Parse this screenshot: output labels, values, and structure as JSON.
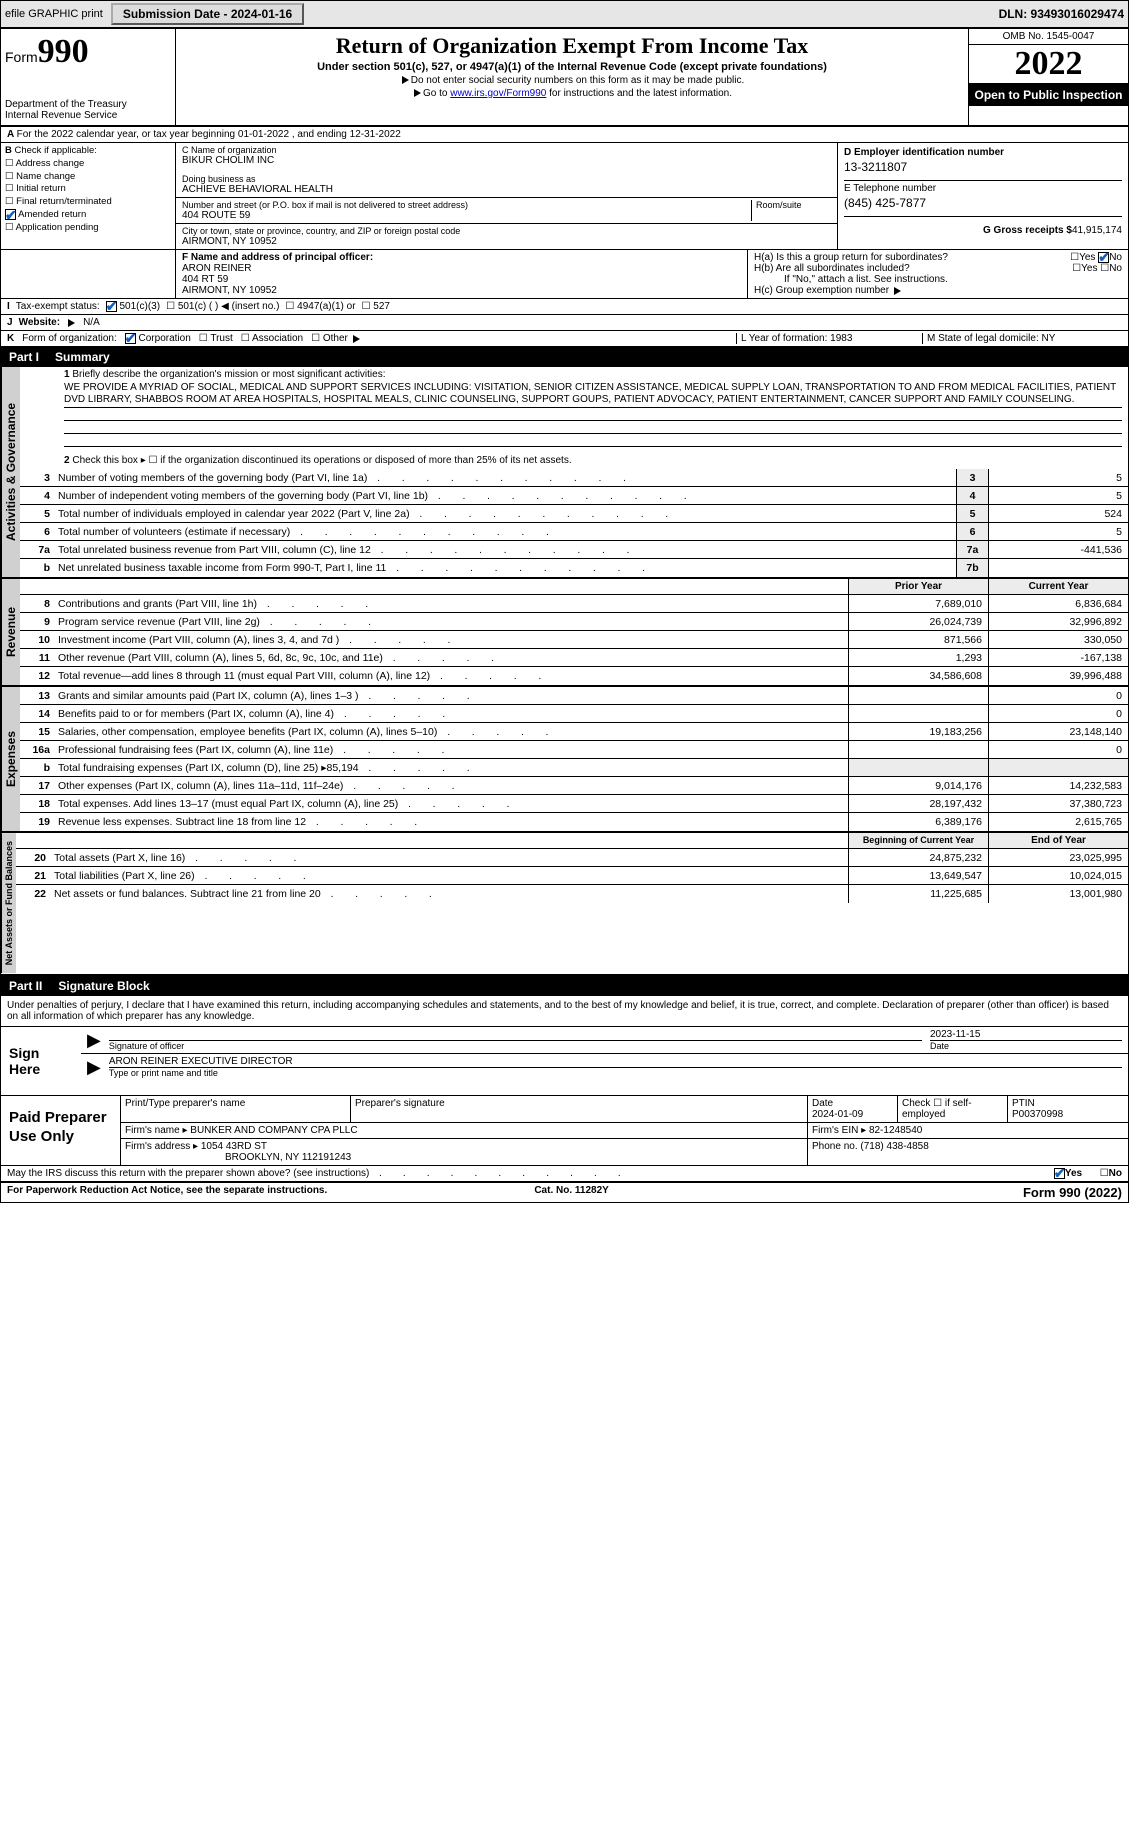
{
  "topbar": {
    "efile": "efile GRAPHIC print",
    "submission_btn": "Submission Date - 2024-01-16",
    "dln": "DLN: 93493016029474"
  },
  "header": {
    "form_word": "Form",
    "form_num": "990",
    "dept": "Department of the Treasury",
    "irs": "Internal Revenue Service",
    "title": "Return of Organization Exempt From Income Tax",
    "subtitle": "Under section 501(c), 527, or 4947(a)(1) of the Internal Revenue Code (except private foundations)",
    "note1": "Do not enter social security numbers on this form as it may be made public.",
    "note2_pre": "Go to ",
    "note2_link": "www.irs.gov/Form990",
    "note2_post": " for instructions and the latest information.",
    "omb": "OMB No. 1545-0047",
    "year": "2022",
    "inspection": "Open to Public Inspection"
  },
  "row_a": "For the 2022 calendar year, or tax year beginning 01-01-2022    , and ending 12-31-2022",
  "col_b": {
    "label": "Check if applicable:",
    "items": [
      "Address change",
      "Name change",
      "Initial return",
      "Final return/terminated",
      "Amended return",
      "Application pending"
    ],
    "amended_checked": true
  },
  "col_c": {
    "name_label": "C Name of organization",
    "name": "BIKUR CHOLIM INC",
    "dba_label": "Doing business as",
    "dba": "ACHIEVE BEHAVIORAL HEALTH",
    "addr_label": "Number and street (or P.O. box if mail is not delivered to street address)",
    "room_label": "Room/suite",
    "addr": "404 ROUTE 59",
    "city_label": "City or town, state or province, country, and ZIP or foreign postal code",
    "city": "AIRMONT, NY  10952"
  },
  "col_d": {
    "d_label": "D Employer identification number",
    "d_val": "13-3211807",
    "e_label": "E Telephone number",
    "e_val": "(845) 425-7877",
    "g_label": "G Gross receipts $",
    "g_val": "41,915,174"
  },
  "fgh": {
    "f_label": "F  Name and address of principal officer:",
    "f_name": "ARON REINER",
    "f_addr1": "404 RT 59",
    "f_addr2": "AIRMONT, NY  10952",
    "ha": "H(a)  Is this a group return for subordinates?",
    "hb": "H(b)  Are all subordinates included?",
    "hb_note": "If \"No,\" attach a list. See instructions.",
    "hc": "H(c)  Group exemption number",
    "yes": "Yes",
    "no": "No"
  },
  "row_i": {
    "label": "Tax-exempt status:",
    "opts": [
      "501(c)(3)",
      "501(c) (   ) ◀ (insert no.)",
      "4947(a)(1) or",
      "527"
    ]
  },
  "row_j": {
    "label": "Website:",
    "val": "N/A"
  },
  "row_k": {
    "label": "Form of organization:",
    "opts": [
      "Corporation",
      "Trust",
      "Association",
      "Other"
    ]
  },
  "row_lm": {
    "l": "L Year of formation: 1983",
    "m": "M State of legal domicile: NY"
  },
  "part1": {
    "num": "Part I",
    "title": "Summary"
  },
  "summary": {
    "l1": "Briefly describe the organization's mission or most significant activities:",
    "mission": "WE PROVIDE A MYRIAD OF SOCIAL, MEDICAL AND SUPPORT SERVICES INCLUDING: VISITATION, SENIOR CITIZEN ASSISTANCE, MEDICAL SUPPLY LOAN, TRANSPORTATION TO AND FROM MEDICAL FACILITIES, PATIENT DVD LIBRARY, SHABBOS ROOM AT AREA HOSPITALS, HOSPITAL MEALS, CLINIC COUNSELING, SUPPORT GOUPS, PATIENT ADVOCACY, PATIENT ENTERTAINMENT, CANCER SUPPORT AND FAMILY COUNSELING.",
    "l2": "Check this box ▸ ☐  if the organization discontinued its operations or disposed of more than 25% of its net assets.",
    "lines_gov": [
      {
        "n": "3",
        "d": "Number of voting members of the governing body (Part VI, line 1a)",
        "b": "3",
        "v": "5"
      },
      {
        "n": "4",
        "d": "Number of independent voting members of the governing body (Part VI, line 1b)",
        "b": "4",
        "v": "5"
      },
      {
        "n": "5",
        "d": "Total number of individuals employed in calendar year 2022 (Part V, line 2a)",
        "b": "5",
        "v": "524"
      },
      {
        "n": "6",
        "d": "Total number of volunteers (estimate if necessary)",
        "b": "6",
        "v": "5"
      },
      {
        "n": "7a",
        "d": "Total unrelated business revenue from Part VIII, column (C), line 12",
        "b": "7a",
        "v": "-441,536"
      },
      {
        "n": "b",
        "d": "Net unrelated business taxable income from Form 990-T, Part I, line 11",
        "b": "7b",
        "v": ""
      }
    ],
    "prior_label": "Prior Year",
    "current_label": "Current Year",
    "revenue": [
      {
        "n": "8",
        "d": "Contributions and grants (Part VIII, line 1h)",
        "p": "7,689,010",
        "c": "6,836,684"
      },
      {
        "n": "9",
        "d": "Program service revenue (Part VIII, line 2g)",
        "p": "26,024,739",
        "c": "32,996,892"
      },
      {
        "n": "10",
        "d": "Investment income (Part VIII, column (A), lines 3, 4, and 7d )",
        "p": "871,566",
        "c": "330,050"
      },
      {
        "n": "11",
        "d": "Other revenue (Part VIII, column (A), lines 5, 6d, 8c, 9c, 10c, and 11e)",
        "p": "1,293",
        "c": "-167,138"
      },
      {
        "n": "12",
        "d": "Total revenue—add lines 8 through 11 (must equal Part VIII, column (A), line 12)",
        "p": "34,586,608",
        "c": "39,996,488"
      }
    ],
    "expenses": [
      {
        "n": "13",
        "d": "Grants and similar amounts paid (Part IX, column (A), lines 1–3 )",
        "p": "",
        "c": "0"
      },
      {
        "n": "14",
        "d": "Benefits paid to or for members (Part IX, column (A), line 4)",
        "p": "",
        "c": "0"
      },
      {
        "n": "15",
        "d": "Salaries, other compensation, employee benefits (Part IX, column (A), lines 5–10)",
        "p": "19,183,256",
        "c": "23,148,140"
      },
      {
        "n": "16a",
        "d": "Professional fundraising fees (Part IX, column (A), line 11e)",
        "p": "",
        "c": "0"
      },
      {
        "n": "b",
        "d": "Total fundraising expenses (Part IX, column (D), line 25) ▸85,194",
        "p": "",
        "c": "",
        "noval": true
      },
      {
        "n": "17",
        "d": "Other expenses (Part IX, column (A), lines 11a–11d, 11f–24e)",
        "p": "9,014,176",
        "c": "14,232,583"
      },
      {
        "n": "18",
        "d": "Total expenses. Add lines 13–17 (must equal Part IX, column (A), line 25)",
        "p": "28,197,432",
        "c": "37,380,723"
      },
      {
        "n": "19",
        "d": "Revenue less expenses. Subtract line 18 from line 12",
        "p": "6,389,176",
        "c": "2,615,765"
      }
    ],
    "boy_label": "Beginning of Current Year",
    "eoy_label": "End of Year",
    "netassets": [
      {
        "n": "20",
        "d": "Total assets (Part X, line 16)",
        "p": "24,875,232",
        "c": "23,025,995"
      },
      {
        "n": "21",
        "d": "Total liabilities (Part X, line 26)",
        "p": "13,649,547",
        "c": "10,024,015"
      },
      {
        "n": "22",
        "d": "Net assets or fund balances. Subtract line 21 from line 20",
        "p": "11,225,685",
        "c": "13,001,980"
      }
    ],
    "vlabels": {
      "gov": "Activities & Governance",
      "rev": "Revenue",
      "exp": "Expenses",
      "net": "Net Assets or Fund Balances"
    }
  },
  "part2": {
    "num": "Part II",
    "title": "Signature Block"
  },
  "sig": {
    "jurat": "Under penalties of perjury, I declare that I have examined this return, including accompanying schedules and statements, and to the best of my knowledge and belief, it is true, correct, and complete. Declaration of preparer (other than officer) is based on all information of which preparer has any knowledge.",
    "sign_here": "Sign Here",
    "date": "2023-11-15",
    "sig_officer": "Signature of officer",
    "date_label": "Date",
    "name_title": "ARON REINER  EXECUTIVE DIRECTOR",
    "name_title_label": "Type or print name and title"
  },
  "prep": {
    "label": "Paid Preparer Use Only",
    "h": [
      "Print/Type preparer's name",
      "Preparer's signature",
      "Date",
      "Check ☐ if self-employed",
      "PTIN"
    ],
    "date": "2024-01-09",
    "ptin": "P00370998",
    "firm_name_l": "Firm's name   ▸",
    "firm_name": "BUNKER AND COMPANY CPA PLLC",
    "firm_ein_l": "Firm's EIN ▸",
    "firm_ein": "82-1248540",
    "firm_addr_l": "Firm's address ▸",
    "firm_addr1": "1054 43RD ST",
    "firm_addr2": "BROOKLYN, NY  112191243",
    "phone_l": "Phone no.",
    "phone": "(718) 438-4858"
  },
  "discuss": {
    "q": "May the IRS discuss this return with the preparer shown above? (see instructions)",
    "yes": "Yes",
    "no": "No"
  },
  "footer": {
    "left": "For Paperwork Reduction Act Notice, see the separate instructions.",
    "mid": "Cat. No. 11282Y",
    "right": "Form 990 (2022)"
  }
}
